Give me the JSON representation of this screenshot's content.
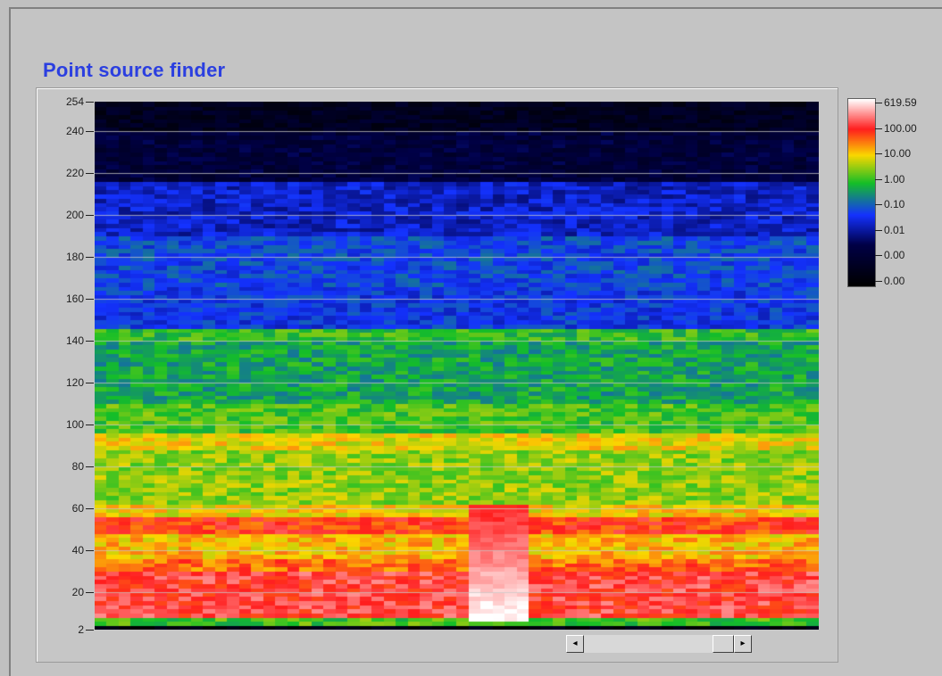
{
  "title": "Point source finder",
  "chart_data": {
    "type": "heatmap",
    "title": "Point source finder",
    "y_ticks": [
      "254",
      "240",
      "220",
      "200",
      "180",
      "160",
      "140",
      "120",
      "100",
      "80",
      "60",
      "40",
      "20",
      "2"
    ],
    "y_tick_values": [
      254,
      240,
      220,
      200,
      180,
      160,
      140,
      120,
      100,
      80,
      60,
      40,
      20,
      2
    ],
    "ylim": [
      2,
      254
    ],
    "colorbar": {
      "labels": [
        "619.59",
        "100.00",
        "10.00",
        "1.00",
        "0.10",
        "0.01",
        "0.00",
        "0.00"
      ],
      "colors": [
        "#ffffff",
        "#ff2020",
        "#ffd000",
        "#20c020",
        "#1030ff",
        "#000060",
        "#000000"
      ],
      "scale": "log"
    },
    "gridlines_y": [
      240,
      220,
      200,
      180,
      160,
      140,
      120,
      100,
      80,
      60,
      40,
      20
    ],
    "hot_region": {
      "x_fraction_start": 0.51,
      "x_fraction_end": 0.6,
      "y_range": [
        5,
        60
      ]
    }
  },
  "scrollbar": {
    "left_arrow": "◂",
    "right_arrow": "▸"
  }
}
